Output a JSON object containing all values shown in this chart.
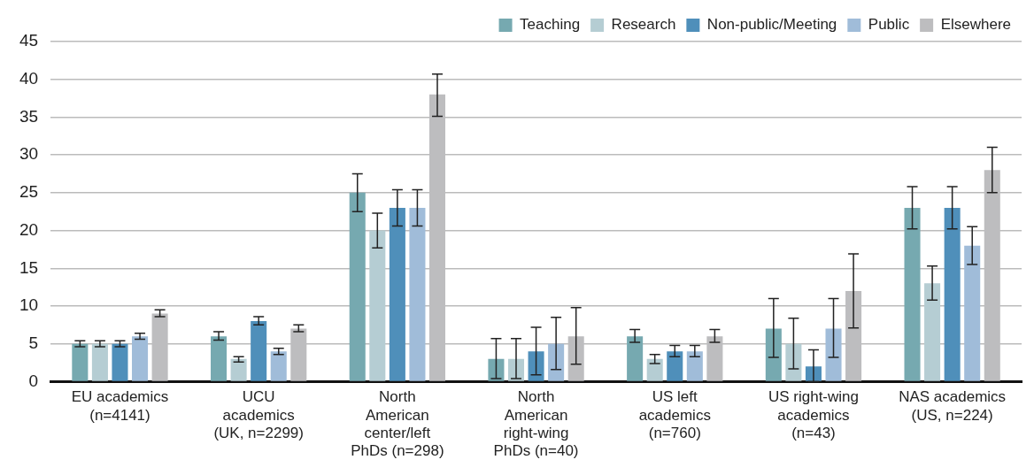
{
  "chart_data": {
    "type": "bar",
    "categories": [
      "EU academics\n(n=4141)",
      "UCU\nacademics\n(UK, n=2299)",
      "North\nAmerican\ncenter/left\nPhDs (n=298)",
      "North\nAmerican\nright-wing\nPhDs (n=40)",
      "US left\nacademics\n(n=760)",
      "US right-wing\nacademics\n(n=43)",
      "NAS academics\n(US, n=224)"
    ],
    "series": [
      {
        "name": "Teaching",
        "color": "#76a9b0",
        "values": [
          5,
          6,
          25,
          3,
          6,
          7,
          23
        ],
        "errors": [
          [
            4.6,
            5.4
          ],
          [
            5.5,
            6.6
          ],
          [
            22.5,
            27.5
          ],
          [
            0.4,
            5.7
          ],
          [
            5.2,
            6.9
          ],
          [
            3.2,
            11
          ],
          [
            20.2,
            25.8
          ]
        ]
      },
      {
        "name": "Research",
        "color": "#b5cdd3",
        "values": [
          5,
          3,
          20,
          3,
          3,
          5,
          13
        ],
        "errors": [
          [
            4.6,
            5.4
          ],
          [
            2.6,
            3.3
          ],
          [
            17.7,
            22.3
          ],
          [
            0.4,
            5.7
          ],
          [
            2.4,
            3.6
          ],
          [
            1.7,
            8.4
          ],
          [
            10.8,
            15.3
          ]
        ]
      },
      {
        "name": "Non-public/Meeting",
        "color": "#4f8fba",
        "values": [
          5,
          8,
          23,
          4,
          4,
          2,
          23
        ],
        "errors": [
          [
            4.6,
            5.4
          ],
          [
            7.5,
            8.6
          ],
          [
            20.6,
            25.4
          ],
          [
            0.9,
            7.2
          ],
          [
            3.3,
            4.8
          ],
          [
            0,
            4.2
          ],
          [
            20.2,
            25.8
          ]
        ]
      },
      {
        "name": "Public",
        "color": "#a0bcd9",
        "values": [
          6,
          4,
          23,
          5,
          4,
          7,
          18
        ],
        "errors": [
          [
            5.6,
            6.4
          ],
          [
            3.6,
            4.4
          ],
          [
            20.6,
            25.4
          ],
          [
            1.6,
            8.5
          ],
          [
            3.3,
            4.8
          ],
          [
            3.2,
            11
          ],
          [
            15.5,
            20.5
          ]
        ]
      },
      {
        "name": "Elsewhere",
        "color": "#bdbdbf",
        "values": [
          9,
          7,
          38,
          6,
          6,
          12,
          28
        ],
        "errors": [
          [
            8.6,
            9.5
          ],
          [
            6.6,
            7.5
          ],
          [
            35.1,
            40.7
          ],
          [
            2.3,
            9.8
          ],
          [
            5.2,
            6.9
          ],
          [
            7.1,
            16.9
          ],
          [
            25,
            31
          ]
        ]
      }
    ],
    "ylim": [
      0,
      45
    ],
    "yticks": [
      0,
      5,
      10,
      15,
      20,
      25,
      30,
      35,
      40,
      45
    ],
    "grid": "y",
    "legend": "top right"
  }
}
